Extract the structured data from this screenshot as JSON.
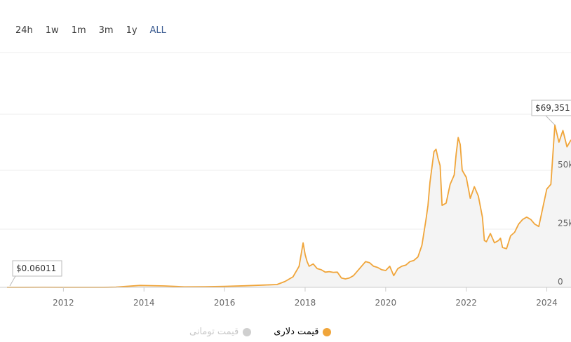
{
  "range_tabs": [
    "24h",
    "1w",
    "1m",
    "3m",
    "1y",
    "ALL"
  ],
  "active_tab": "ALL",
  "colors": {
    "series": "#f0a53a",
    "fill": "#f4f4f4",
    "grid": "#ececec",
    "active_tab": "#3f5f93"
  },
  "chart_data": {
    "type": "line",
    "xlabel": "",
    "ylabel": "",
    "x_ticks": [
      2012,
      2014,
      2016,
      2018,
      2020,
      2022,
      2024
    ],
    "y_ticks": [
      "0",
      "25k",
      "50k"
    ],
    "y_tick_values": [
      0,
      25000,
      50000
    ],
    "ylim": [
      0,
      75000
    ],
    "xlim": [
      2010.6,
      2024.6
    ],
    "grid": true,
    "annotations": [
      {
        "label": "$0.06011",
        "x": 2010.6,
        "y": 0.06011
      },
      {
        "label": "$69,351",
        "x": 2024.2,
        "y": 69351
      }
    ],
    "series": [
      {
        "name": "قیمت دلاری",
        "x": [
          2010.6,
          2011.0,
          2011.5,
          2012.0,
          2012.5,
          2013.0,
          2013.3,
          2013.9,
          2014.5,
          2015.0,
          2015.5,
          2016.0,
          2016.5,
          2017.0,
          2017.3,
          2017.5,
          2017.7,
          2017.85,
          2017.95,
          2018.0,
          2018.05,
          2018.1,
          2018.2,
          2018.3,
          2018.4,
          2018.5,
          2018.6,
          2018.7,
          2018.8,
          2018.9,
          2019.0,
          2019.1,
          2019.2,
          2019.35,
          2019.5,
          2019.6,
          2019.7,
          2019.8,
          2019.9,
          2020.0,
          2020.1,
          2020.2,
          2020.3,
          2020.4,
          2020.5,
          2020.6,
          2020.7,
          2020.8,
          2020.9,
          2021.0,
          2021.05,
          2021.1,
          2021.2,
          2021.25,
          2021.3,
          2021.35,
          2021.4,
          2021.5,
          2021.55,
          2021.6,
          2021.7,
          2021.75,
          2021.8,
          2021.85,
          2021.9,
          2022.0,
          2022.1,
          2022.2,
          2022.3,
          2022.4,
          2022.45,
          2022.5,
          2022.6,
          2022.7,
          2022.8,
          2022.85,
          2022.9,
          2023.0,
          2023.1,
          2023.2,
          2023.3,
          2023.4,
          2023.5,
          2023.6,
          2023.7,
          2023.8,
          2023.9,
          2024.0,
          2024.1,
          2024.2,
          2024.3,
          2024.4,
          2024.5,
          2024.6
        ],
        "values": [
          0.06,
          0.3,
          15,
          5,
          7,
          13,
          100,
          800,
          600,
          220,
          250,
          430,
          650,
          1000,
          1200,
          2500,
          4500,
          9000,
          19000,
          14000,
          11000,
          9000,
          10000,
          8000,
          7500,
          6500,
          6700,
          6400,
          6500,
          4000,
          3600,
          4000,
          5000,
          8000,
          11000,
          10500,
          9000,
          8500,
          7500,
          7200,
          9000,
          5000,
          8000,
          9000,
          9500,
          11000,
          11500,
          13000,
          18000,
          29000,
          35000,
          45000,
          58000,
          59000,
          55000,
          52000,
          35000,
          36000,
          40000,
          44000,
          48000,
          57000,
          64000,
          61000,
          50000,
          47000,
          38000,
          43000,
          39000,
          30000,
          20000,
          19500,
          23000,
          19000,
          20000,
          21000,
          17000,
          16500,
          22000,
          23500,
          27000,
          29000,
          30000,
          29000,
          27000,
          26000,
          34000,
          42000,
          44000,
          69351,
          62000,
          67000,
          60000,
          63000
        ]
      },
      {
        "name": "قیمت تومانی",
        "hidden": true,
        "x": [],
        "values": []
      }
    ],
    "legend_position": "bottom-center"
  }
}
